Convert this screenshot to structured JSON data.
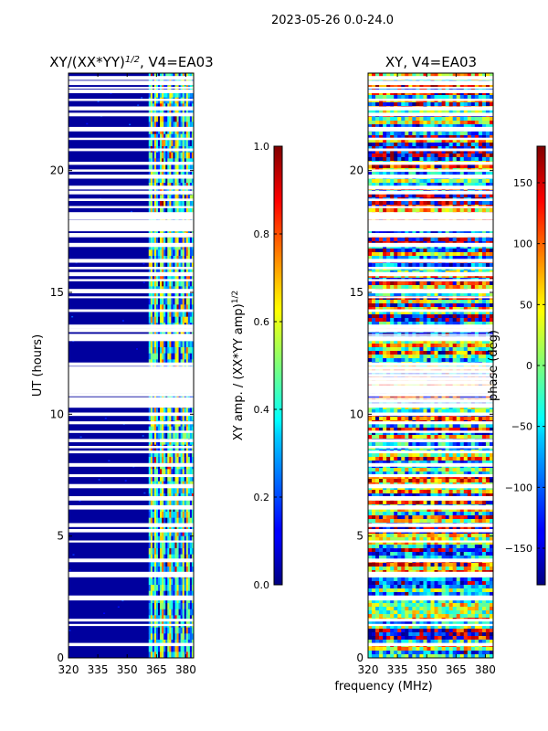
{
  "figure": {
    "suptitle": "2023-05-26 0.0-24.0",
    "xlabel": "frequency (MHz)"
  },
  "chart_data": [
    {
      "type": "heatmap",
      "title": "XY/(XX*YY)",
      "title_sup": "1/2",
      "title_tail": ", V4=EA03",
      "ylabel": "UT (hours)",
      "xlim": [
        320,
        384
      ],
      "ylim": [
        0,
        24
      ],
      "xticks": [
        320,
        335,
        350,
        365,
        380
      ],
      "yticks": [
        0,
        5,
        10,
        15,
        20
      ],
      "colorbar": {
        "label": "XY amp. / (XX*YY amp)",
        "label_sup": "1/2",
        "range": [
          0.0,
          1.0
        ],
        "ticks": [
          "0.0",
          "0.2",
          "0.4",
          "0.6",
          "0.8",
          "1.0"
        ],
        "tick_values": [
          0.0,
          0.2,
          0.4,
          0.6,
          0.8,
          1.0
        ]
      },
      "description": "amplitude ratio mostly ~0 (dark blue) below 361 MHz; bright channel stripes ~0.3-0.7 between 361 and 384 MHz"
    },
    {
      "type": "heatmap",
      "title": "XY, V4=EA03",
      "ylabel": "phase (deg)",
      "xlim": [
        320,
        384
      ],
      "ylim": [
        0,
        24
      ],
      "xticks": [
        320,
        335,
        350,
        365,
        380
      ],
      "yticks": [
        0,
        5,
        10,
        15,
        20
      ],
      "colorbar": {
        "label": "phase (deg)",
        "range": [
          -180,
          180
        ],
        "ticks": [
          "−150",
          "−100",
          "−50",
          "0",
          "50",
          "100",
          "150"
        ],
        "tick_values": [
          -150,
          -100,
          -50,
          0,
          50,
          100,
          150
        ]
      },
      "description": "phase noisy across full band spanning -180 to 180 deg"
    }
  ],
  "flagged_hours": [
    0.55,
    1.35,
    1.55,
    2.42,
    2.5,
    3.38,
    3.48,
    4.0,
    4.78,
    5.22,
    5.45,
    6.18,
    6.55,
    7.05,
    7.48,
    7.92,
    8.45,
    8.65,
    8.92,
    9.28,
    9.65,
    10.0,
    10.35,
    10.55,
    10.8,
    10.95,
    11.1,
    11.3,
    11.45,
    11.6,
    11.75,
    11.9,
    12.05,
    13.1,
    13.45,
    13.6,
    14.25,
    14.8,
    15.05,
    15.5,
    15.75,
    16.0,
    16.3,
    16.95,
    17.35,
    17.6,
    17.75,
    17.9,
    18.05,
    18.2,
    18.5,
    18.8,
    19.1,
    19.3,
    19.75,
    20.0,
    20.3,
    20.85,
    21.3,
    21.7,
    22.3,
    22.55,
    22.9,
    23.25,
    23.4,
    23.6,
    23.8
  ]
}
